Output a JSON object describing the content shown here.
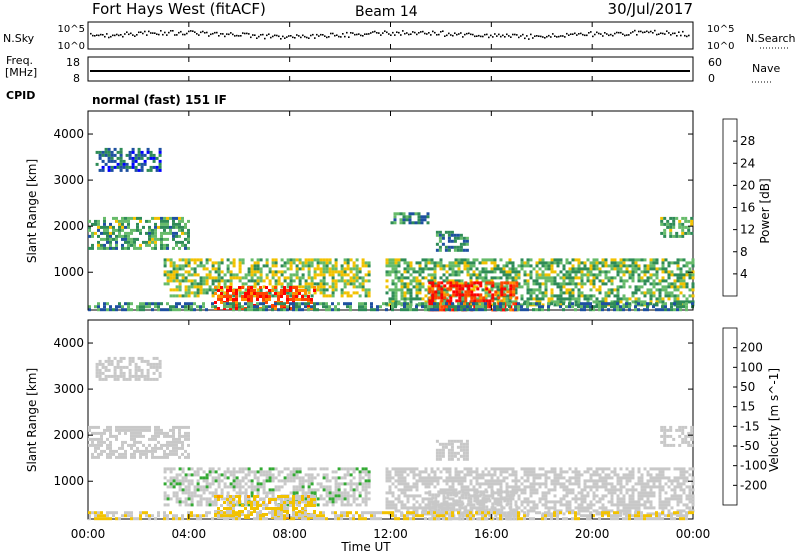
{
  "header": {
    "title": "Fort Hays West (fitACF)",
    "beam": "Beam 14",
    "date": "30/Jul/2017"
  },
  "noise_panel": {
    "left_label": "N.Sky",
    "left_ticks": [
      "10^5",
      "10^0"
    ],
    "right_label": "N.Search",
    "right_ticks": [
      "10^5",
      "10^0"
    ]
  },
  "freq_panel": {
    "left_label_1": "Freq.",
    "left_label_2": "[MHz]",
    "left_ticks": [
      "18",
      "8"
    ],
    "right_label": "Nave",
    "right_ticks": [
      "60",
      "0"
    ]
  },
  "cpid": {
    "label": "CPID",
    "mode": "normal (fast) 151 IF"
  },
  "time_axis": {
    "label": "Time UT",
    "ticks": [
      "00:00",
      "04:00",
      "08:00",
      "12:00",
      "16:00",
      "20:00",
      "00:00"
    ]
  },
  "colors": {
    "power_scale": [
      "#0000ff",
      "#1e50a0",
      "#2e8b57",
      "#66bb6a",
      "#f2c200",
      "#ff8c00",
      "#ff4400",
      "#ff0000"
    ],
    "velocity_scale": [
      "#ff0000",
      "#ff5500",
      "#ff9900",
      "#f2c200",
      "#c8c8c8",
      "#c8c8c8",
      "#33aa33",
      "#2e8b57",
      "#1f4fa0",
      "#0000cc"
    ]
  },
  "chart_data": [
    {
      "type": "heatmap",
      "name": "power",
      "ylabel": "Slant Range [km]",
      "xlabel": "Time UT",
      "y_ticks": [
        1000,
        2000,
        3000,
        4000
      ],
      "ylim": [
        180,
        4500
      ],
      "xlim": [
        0,
        24
      ],
      "colorbar_label": "Power [dB]",
      "colorbar_ticks": [
        4,
        8,
        12,
        16,
        20,
        24,
        28
      ],
      "colorbar_range": [
        0,
        32
      ],
      "regions": [
        {
          "t": [
            0.3,
            2.8
          ],
          "r": [
            3200,
            3700
          ],
          "v": 7
        },
        {
          "t": [
            0.0,
            4.0
          ],
          "r": [
            1500,
            2200
          ],
          "v": 12
        },
        {
          "t": [
            3.0,
            11.2
          ],
          "r": [
            500,
            1300
          ],
          "v": 15
        },
        {
          "t": [
            5.0,
            9.0
          ],
          "r": [
            200,
            700
          ],
          "v": 26
        },
        {
          "t": [
            11.8,
            24.0
          ],
          "r": [
            300,
            1300
          ],
          "v": 13
        },
        {
          "t": [
            13.5,
            17.0
          ],
          "r": [
            200,
            800
          ],
          "v": 28
        },
        {
          "t": [
            0.0,
            24.0
          ],
          "r": [
            180,
            350
          ],
          "v": 10
        },
        {
          "t": [
            13.8,
            15.0
          ],
          "r": [
            1500,
            1900
          ],
          "v": 9
        },
        {
          "t": [
            12.0,
            13.5
          ],
          "r": [
            2100,
            2300
          ],
          "v": 10
        },
        {
          "t": [
            22.7,
            24.0
          ],
          "r": [
            1800,
            2200
          ],
          "v": 13
        }
      ]
    },
    {
      "type": "heatmap",
      "name": "velocity",
      "ylabel": "Slant Range [km]",
      "xlabel": "Time UT",
      "y_ticks": [
        1000,
        2000,
        3000,
        4000
      ],
      "ylim": [
        180,
        4500
      ],
      "xlim": [
        0,
        24
      ],
      "colorbar_label": "Velocity [m s^-1]",
      "colorbar_ticks": [
        "200",
        "100",
        "50",
        "15",
        "-15",
        "-50",
        "-100",
        "-200"
      ],
      "colorbar_range": [
        -250,
        250
      ],
      "regions": [
        {
          "t": [
            0.3,
            2.8
          ],
          "r": [
            3200,
            3700
          ],
          "v": 0
        },
        {
          "t": [
            0.0,
            4.0
          ],
          "r": [
            1500,
            2200
          ],
          "v": -5
        },
        {
          "t": [
            3.0,
            11.2
          ],
          "r": [
            500,
            1300
          ],
          "v": 20
        },
        {
          "t": [
            5.0,
            9.0
          ],
          "r": [
            200,
            700
          ],
          "v": -60
        },
        {
          "t": [
            11.8,
            24.0
          ],
          "r": [
            300,
            1300
          ],
          "v": 0
        },
        {
          "t": [
            13.5,
            17.0
          ],
          "r": [
            200,
            800
          ],
          "v": 0
        },
        {
          "t": [
            0.0,
            24.0
          ],
          "r": [
            180,
            350
          ],
          "v": -40
        },
        {
          "t": [
            13.8,
            15.0
          ],
          "r": [
            1500,
            1900
          ],
          "v": 0
        },
        {
          "t": [
            22.7,
            24.0
          ],
          "r": [
            1800,
            2200
          ],
          "v": 0
        }
      ]
    }
  ]
}
